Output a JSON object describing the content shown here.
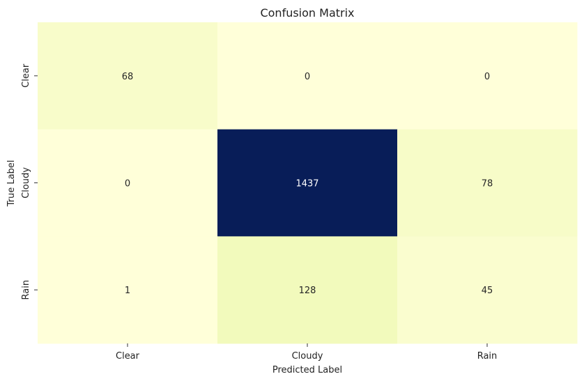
{
  "chart_data": {
    "type": "heatmap",
    "title": "Confusion Matrix",
    "xlabel": "Predicted Label",
    "ylabel": "True Label",
    "x_categories": [
      "Clear",
      "Cloudy",
      "Rain"
    ],
    "y_categories": [
      "Clear",
      "Cloudy",
      "Rain"
    ],
    "values": [
      [
        68,
        0,
        0
      ],
      [
        0,
        1437,
        78
      ],
      [
        1,
        128,
        45
      ]
    ],
    "colormap": "YlGnBu",
    "annotated": true,
    "colorbar": false
  }
}
